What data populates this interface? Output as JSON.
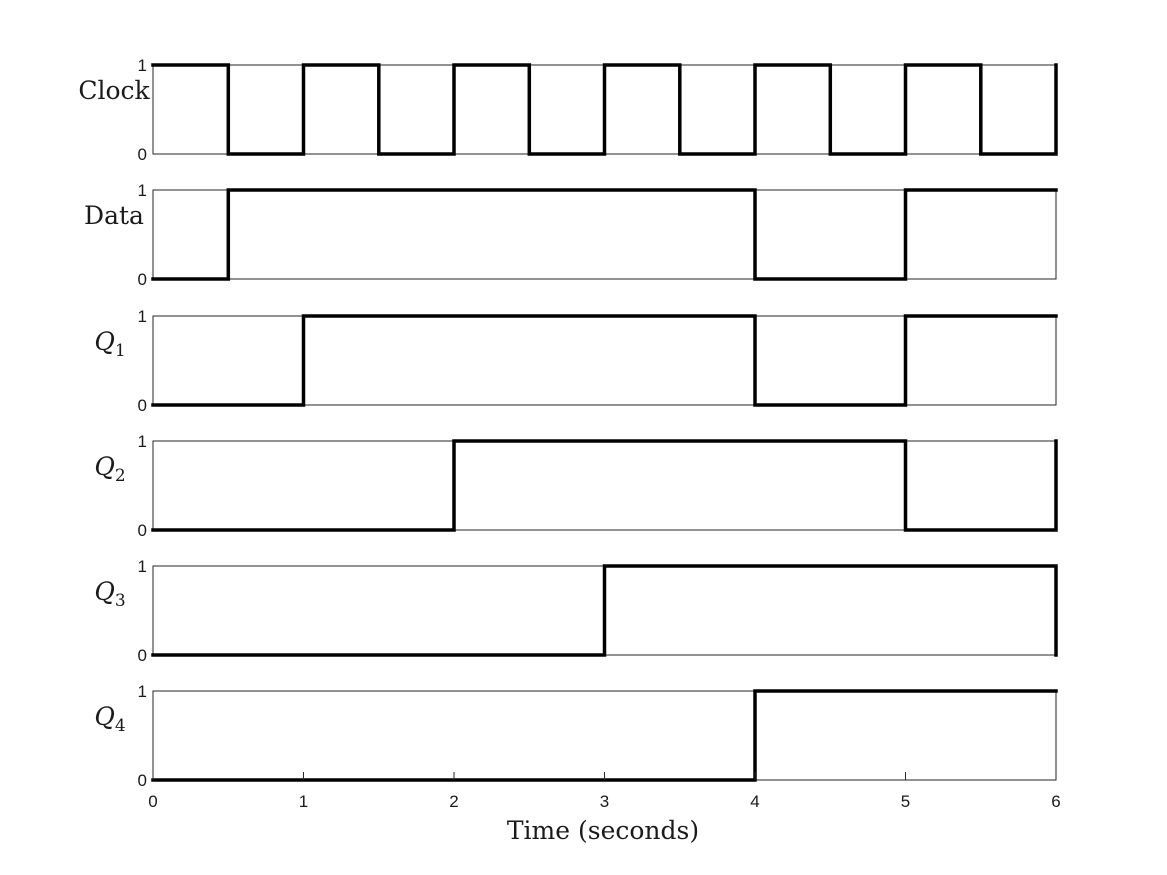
{
  "chart_data": {
    "type": "line",
    "subtype": "step-timing-diagram",
    "xlabel": "Time (seconds)",
    "xlim": [
      0,
      6
    ],
    "xticks": [
      "0",
      "1",
      "2",
      "3",
      "4",
      "5",
      "6"
    ],
    "ylim": [
      0,
      1
    ],
    "yticks": [
      "0",
      "1"
    ],
    "grid": false,
    "line_color": "#000000",
    "series": [
      {
        "name": "Clock",
        "label_main": "Clock",
        "label_sub": "",
        "label_italic": false,
        "x": [
          0,
          0.5,
          0.5,
          1,
          1,
          1.5,
          1.5,
          2,
          2,
          2.5,
          2.5,
          3,
          3,
          3.5,
          3.5,
          4,
          4,
          4.5,
          4.5,
          5,
          5,
          5.5,
          5.5,
          6,
          6
        ],
        "y": [
          1,
          1,
          0,
          0,
          1,
          1,
          0,
          0,
          1,
          1,
          0,
          0,
          1,
          1,
          0,
          0,
          1,
          1,
          0,
          0,
          1,
          1,
          0,
          0,
          1
        ]
      },
      {
        "name": "Data",
        "label_main": "Data",
        "label_sub": "",
        "label_italic": false,
        "x": [
          0,
          0.5,
          0.5,
          4,
          4,
          5,
          5,
          6
        ],
        "y": [
          0,
          0,
          1,
          1,
          0,
          0,
          1,
          1
        ]
      },
      {
        "name": "Q1",
        "label_main": "Q",
        "label_sub": "1",
        "label_italic": true,
        "x": [
          0,
          1,
          1,
          4,
          4,
          5,
          5,
          6
        ],
        "y": [
          0,
          0,
          1,
          1,
          0,
          0,
          1,
          1
        ]
      },
      {
        "name": "Q2",
        "label_main": "Q",
        "label_sub": "2",
        "label_italic": true,
        "x": [
          0,
          2,
          2,
          5,
          5,
          6,
          6
        ],
        "y": [
          0,
          0,
          1,
          1,
          0,
          0,
          1
        ]
      },
      {
        "name": "Q3",
        "label_main": "Q",
        "label_sub": "3",
        "label_italic": true,
        "x": [
          0,
          3,
          3,
          6,
          6
        ],
        "y": [
          0,
          0,
          1,
          1,
          0
        ]
      },
      {
        "name": "Q4",
        "label_main": "Q",
        "label_sub": "4",
        "label_italic": true,
        "x": [
          0,
          4,
          4,
          6
        ],
        "y": [
          0,
          0,
          1,
          1
        ]
      }
    ]
  }
}
